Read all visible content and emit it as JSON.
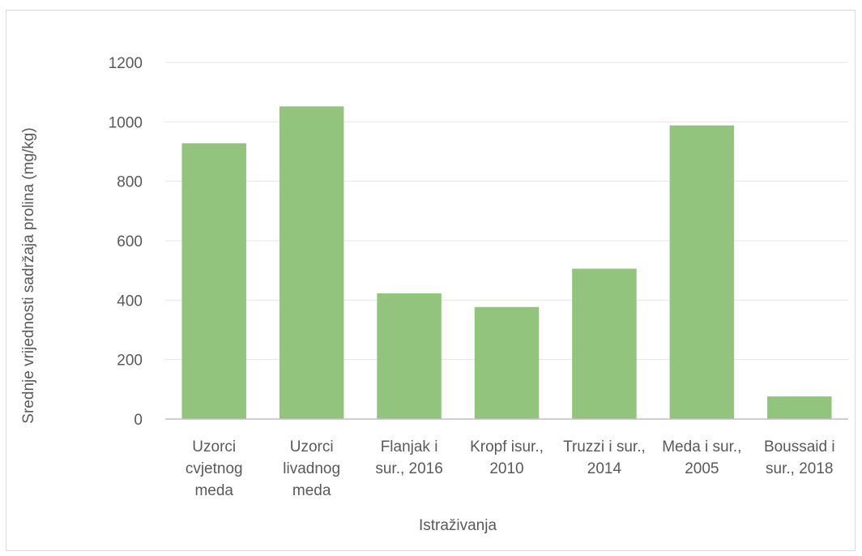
{
  "chart_data": {
    "type": "bar",
    "categories": [
      [
        "Uzorci",
        "cvjetnog",
        "meda"
      ],
      [
        "Uzorci",
        "livadnog",
        "meda"
      ],
      [
        "Flanjak i",
        "sur., 2016"
      ],
      [
        "Kropf isur.,",
        "2010"
      ],
      [
        "Truzzi i sur.,",
        "2014"
      ],
      [
        "Meda i sur.,",
        "2005"
      ],
      [
        "Boussaid i",
        "sur., 2018"
      ]
    ],
    "values": [
      928,
      1052,
      423,
      377,
      506,
      988,
      76
    ],
    "title": "",
    "xlabel": "Istraživanja",
    "ylabel": "Srednje vrijednosti sadržaja prolina (mg/kg)",
    "ylim": [
      0,
      1200
    ],
    "yticks": [
      0,
      200,
      400,
      600,
      800,
      1000,
      1200
    ],
    "grid": true,
    "bar_color": "#93c47d",
    "grid_color": "#e6e6e6",
    "axis_color": "#bfbfbf",
    "text_color": "#595959"
  }
}
